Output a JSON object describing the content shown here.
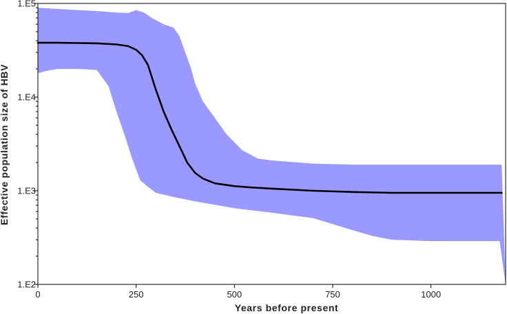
{
  "chart_data": {
    "type": "area",
    "title": "",
    "xlabel": "Years before present",
    "ylabel": "Effective population size of HBV",
    "xlim": [
      0,
      1190
    ],
    "ylim": [
      100,
      100000
    ],
    "y_scale": "log",
    "grid": false,
    "legend": "none",
    "x_ticks": [
      0,
      250,
      500,
      750,
      1000
    ],
    "x_tick_labels": [
      "0",
      "250",
      "500",
      "750",
      "1000"
    ],
    "y_ticks": [
      100,
      1000,
      10000,
      100000
    ],
    "y_tick_labels": [
      "1.E2",
      "1.E3",
      "1.E4",
      "1.E5"
    ],
    "colors": {
      "band": "#9999ff",
      "median": "#000000",
      "axes": "#000000"
    },
    "series": [
      {
        "kind": "median",
        "x": [
          0,
          50,
          100,
          150,
          200,
          230,
          250,
          265,
          280,
          300,
          320,
          340,
          360,
          380,
          400,
          420,
          450,
          500,
          550,
          600,
          700,
          800,
          900,
          1000,
          1100,
          1180
        ],
        "y": [
          38000,
          38000,
          37800,
          37500,
          36500,
          35000,
          32000,
          28000,
          22000,
          12000,
          7000,
          4500,
          3000,
          2000,
          1550,
          1350,
          1200,
          1120,
          1080,
          1050,
          1000,
          970,
          950,
          950,
          950,
          950
        ]
      },
      {
        "kind": "upper_hpd",
        "x": [
          0,
          100,
          150,
          200,
          230,
          250,
          270,
          290,
          320,
          345,
          360,
          375,
          390,
          400,
          420,
          450,
          480,
          520,
          560,
          600,
          700,
          800,
          900,
          1000,
          1100,
          1180
        ],
        "y": [
          90000,
          85000,
          83000,
          80000,
          79000,
          85000,
          80000,
          70000,
          60000,
          55000,
          45000,
          30000,
          20000,
          14000,
          9000,
          6000,
          4000,
          2700,
          2200,
          2100,
          1950,
          1900,
          1900,
          1900,
          1900,
          1900
        ]
      },
      {
        "kind": "lower_hpd",
        "x": [
          0,
          20,
          50,
          100,
          150,
          180,
          200,
          220,
          240,
          260,
          280,
          300,
          350,
          400,
          500,
          600,
          700,
          800,
          850,
          900,
          1000,
          1100,
          1175,
          1180,
          1190
        ],
        "y": [
          18000,
          19000,
          20000,
          20000,
          19500,
          13000,
          7000,
          4000,
          2200,
          1300,
          1100,
          950,
          850,
          770,
          650,
          580,
          510,
          380,
          330,
          300,
          290,
          290,
          290,
          200,
          100
        ]
      }
    ]
  }
}
